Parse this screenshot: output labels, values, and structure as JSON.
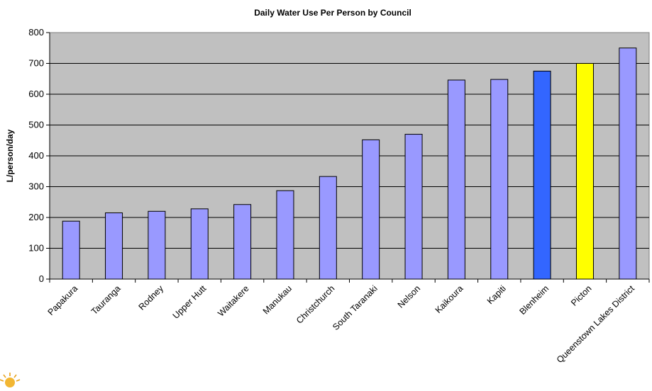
{
  "chart_data": {
    "type": "bar",
    "title": "Daily Water Use Per Person by Council",
    "ylabel": "L/person/day",
    "xlabel": "",
    "ylim": [
      0,
      800
    ],
    "yticks": [
      0,
      100,
      200,
      300,
      400,
      500,
      600,
      700,
      800
    ],
    "grid": "horizontal",
    "categories": [
      "Papakura",
      "Tauranga",
      "Rodney",
      "Upper Hutt",
      "Waitakere",
      "Manukau",
      "Christchurch",
      "South Taranaki",
      "Nelson",
      "Kaikoura",
      "Kapiti",
      "Blenheim",
      "Picton",
      "Queenstown Lakes District"
    ],
    "values": [
      188,
      215,
      220,
      228,
      242,
      287,
      333,
      452,
      470,
      646,
      648,
      675,
      700,
      750
    ],
    "colors": {
      "default_bar": "#9999ff",
      "highlight_blenheim": "#3366ff",
      "highlight_picton": "#ffff00",
      "plot_background": "#c0c0c0"
    },
    "bar_colors": [
      "#9999ff",
      "#9999ff",
      "#9999ff",
      "#9999ff",
      "#9999ff",
      "#9999ff",
      "#9999ff",
      "#9999ff",
      "#9999ff",
      "#9999ff",
      "#9999ff",
      "#3366ff",
      "#ffff00",
      "#9999ff"
    ]
  },
  "logo": {
    "icon": "sun-logo-icon"
  }
}
